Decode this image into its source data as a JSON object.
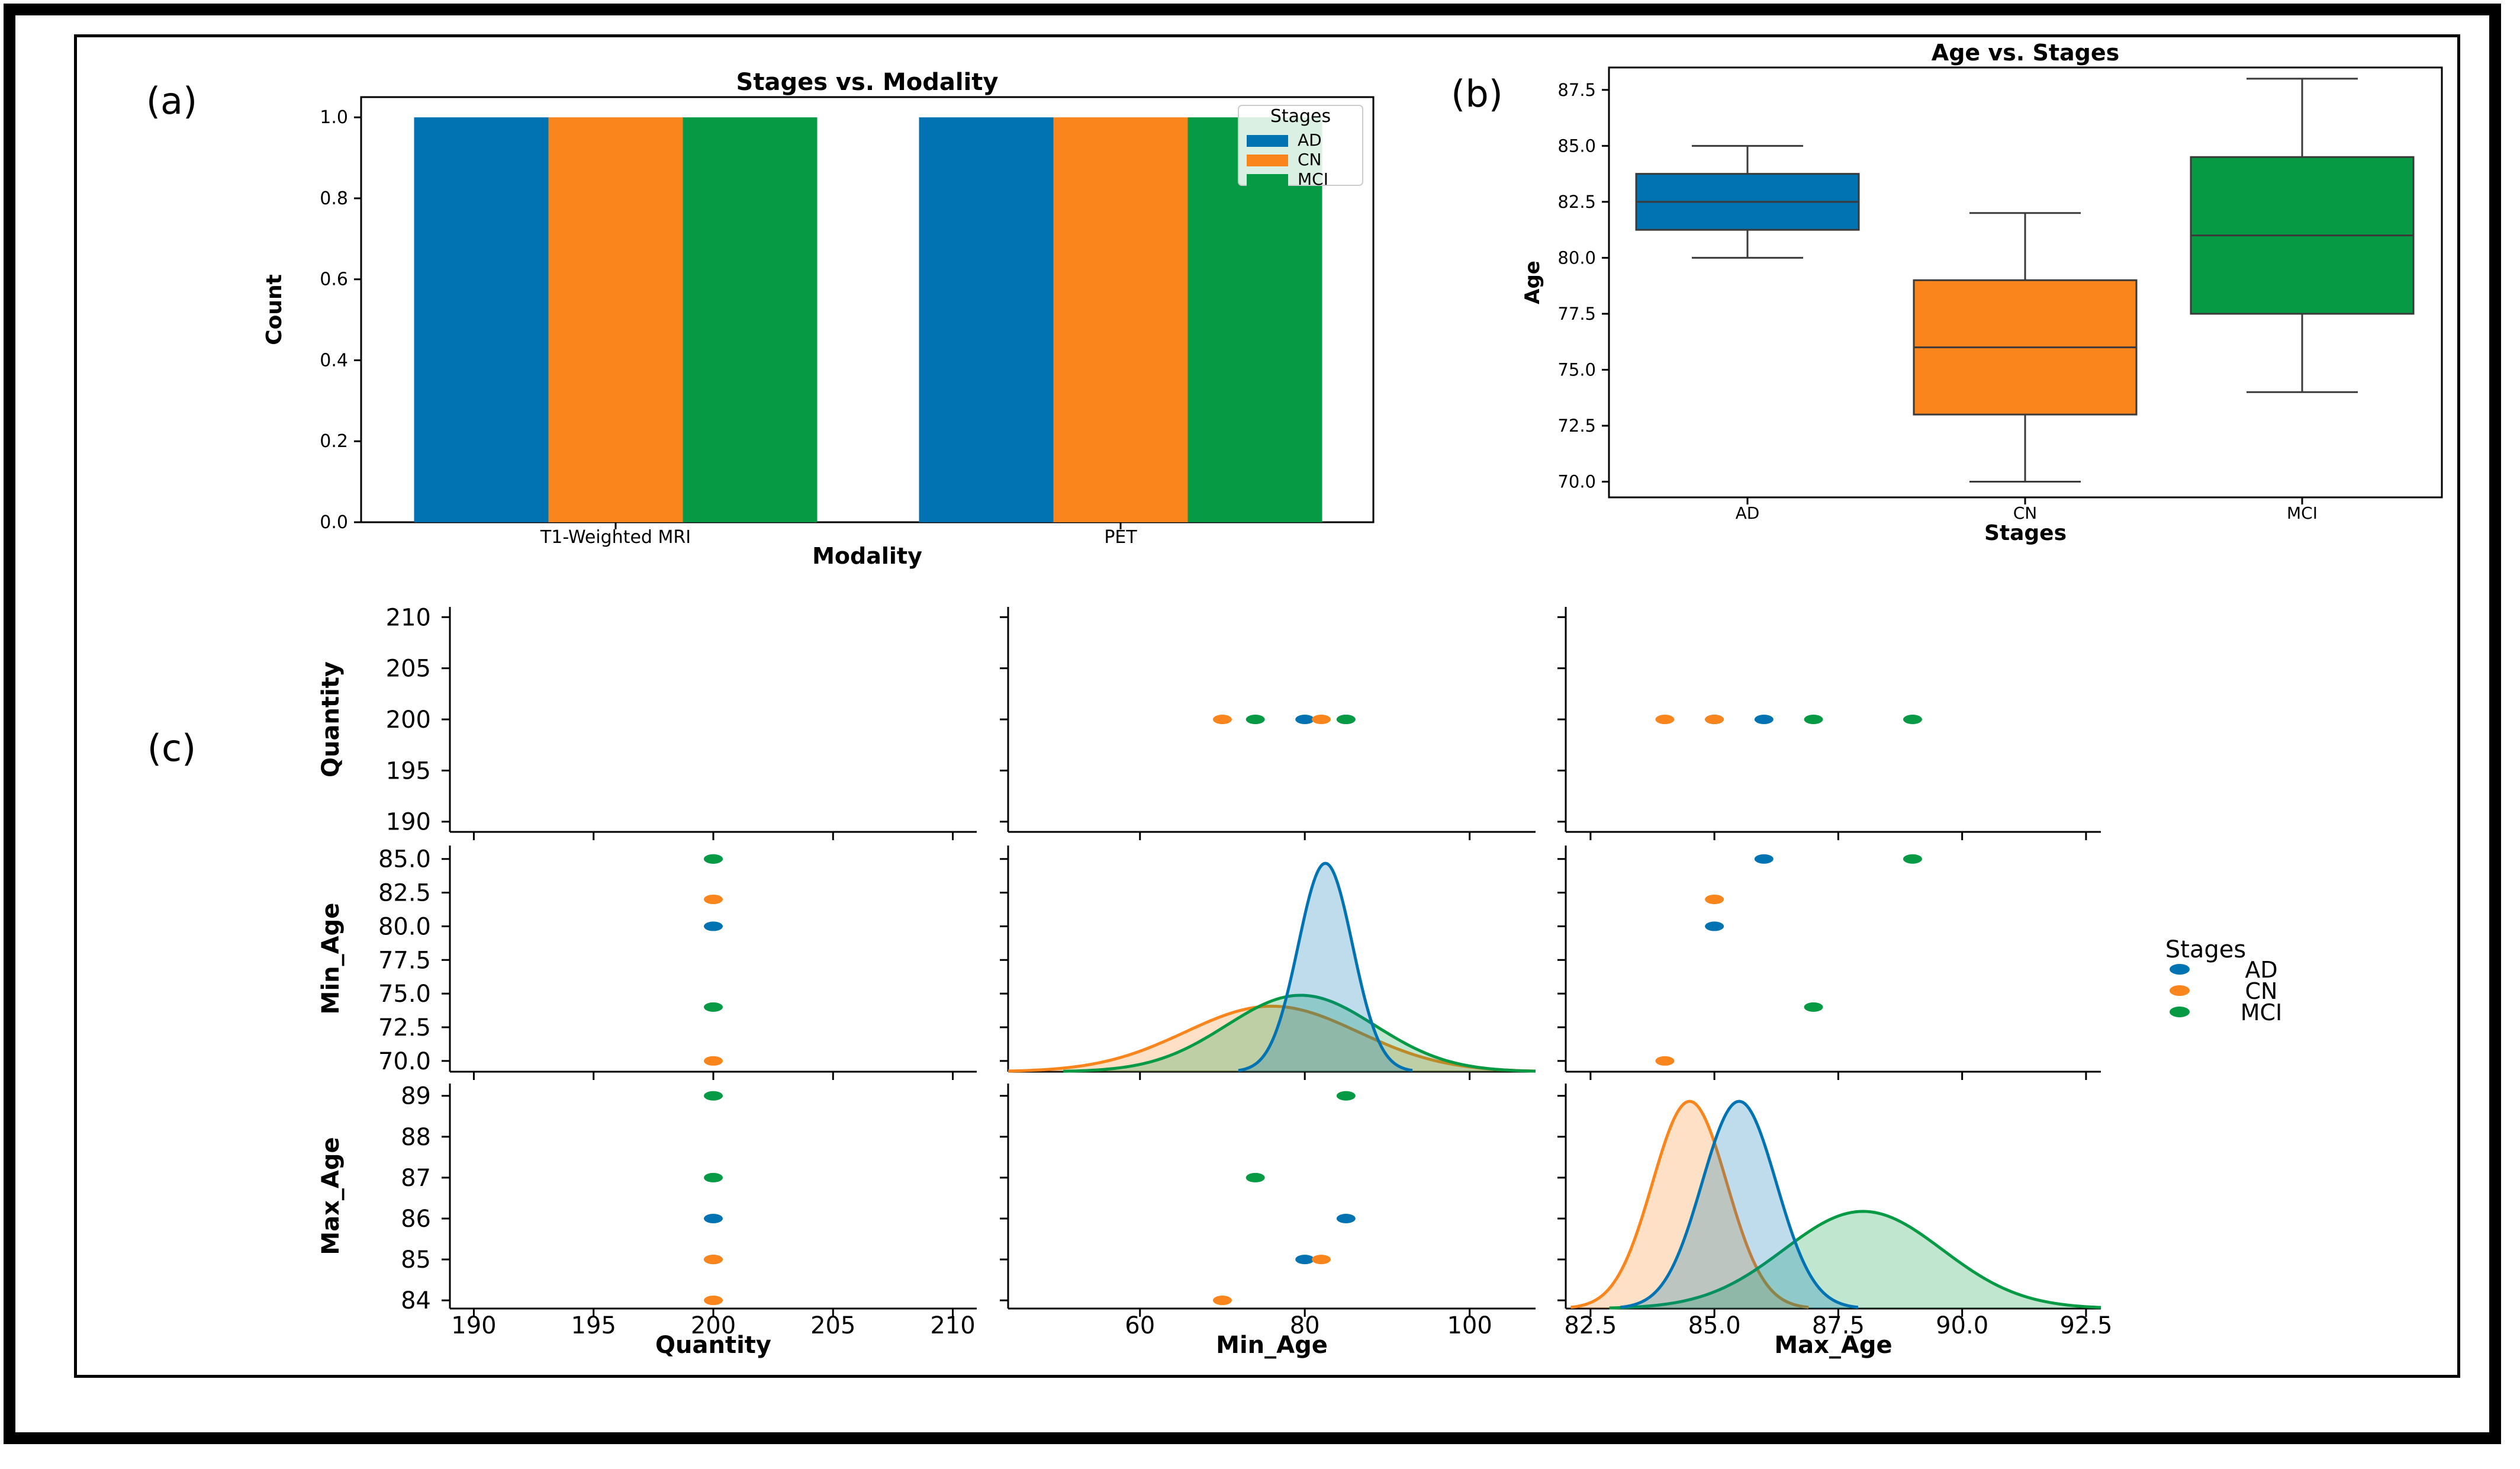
{
  "colors": {
    "AD": "#0173b2",
    "CN": "#f9851c",
    "MCI": "#079a44"
  },
  "panel_labels": {
    "a": "(a)",
    "b": "(b)",
    "c": "(c)"
  },
  "chart_data": [
    {
      "id": "a",
      "type": "bar",
      "title": "Stages vs. Modality",
      "xlabel": "Modality",
      "ylabel": "Count",
      "categories": [
        "T1-Weighted MRI",
        "PET"
      ],
      "series": [
        {
          "name": "AD",
          "values": [
            1.0,
            1.0
          ]
        },
        {
          "name": "CN",
          "values": [
            1.0,
            1.0
          ]
        },
        {
          "name": "MCI",
          "values": [
            1.0,
            1.0
          ]
        }
      ],
      "ylim": [
        0,
        1.05
      ],
      "yticks": [
        "0.0",
        "0.2",
        "0.4",
        "0.6",
        "0.8",
        "1.0"
      ],
      "legend": {
        "title": "Stages",
        "placement": "top-right"
      },
      "grid": false
    },
    {
      "id": "b",
      "type": "box",
      "title": "Age vs. Stages",
      "xlabel": "Stages",
      "ylabel": "Age",
      "categories": [
        "AD",
        "CN",
        "MCI"
      ],
      "boxes": [
        {
          "name": "AD",
          "whisker_low": 80.0,
          "q1": 81.25,
          "median": 82.5,
          "q3": 83.75,
          "whisker_high": 85.0
        },
        {
          "name": "CN",
          "whisker_low": 70.0,
          "q1": 73.0,
          "median": 76.0,
          "q3": 79.0,
          "whisker_high": 82.0
        },
        {
          "name": "MCI",
          "whisker_low": 74.0,
          "q1": 77.5,
          "median": 81.0,
          "q3": 84.5,
          "whisker_high": 88.0
        }
      ],
      "ylim": [
        69.3,
        88.5
      ],
      "yticks": [
        "70.0",
        "72.5",
        "75.0",
        "77.5",
        "80.0",
        "82.5",
        "85.0",
        "87.5"
      ],
      "grid": false
    },
    {
      "id": "c",
      "type": "scatter",
      "subtype": "pairplot",
      "variables": [
        "Quantity",
        "Min_Age",
        "Max_Age"
      ],
      "hue": "Stages",
      "legend": {
        "title": "Stages",
        "entries": [
          "AD",
          "CN",
          "MCI"
        ],
        "placement": "right"
      },
      "points": [
        {
          "stage": "AD",
          "Quantity": 200,
          "Min_Age": 80,
          "Max_Age": 85
        },
        {
          "stage": "AD",
          "Quantity": 200,
          "Min_Age": 85,
          "Max_Age": 86
        },
        {
          "stage": "CN",
          "Quantity": 200,
          "Min_Age": 70,
          "Max_Age": 84
        },
        {
          "stage": "CN",
          "Quantity": 200,
          "Min_Age": 82,
          "Max_Age": 85
        },
        {
          "stage": "MCI",
          "Quantity": 200,
          "Min_Age": 74,
          "Max_Age": 87
        },
        {
          "stage": "MCI",
          "Quantity": 200,
          "Min_Age": 85,
          "Max_Age": 89
        }
      ],
      "kde": {
        "Min_Age": [
          {
            "stage": "AD",
            "mean": 82.5,
            "sd": 3.3
          },
          {
            "stage": "CN",
            "mean": 76.0,
            "sd": 10.5
          },
          {
            "stage": "MCI",
            "mean": 79.5,
            "sd": 9.0
          }
        ],
        "Max_Age": [
          {
            "stage": "AD",
            "mean": 85.5,
            "sd": 0.75
          },
          {
            "stage": "CN",
            "mean": 84.5,
            "sd": 0.75
          },
          {
            "stage": "MCI",
            "mean": 88.0,
            "sd": 1.6
          }
        ]
      },
      "axes": {
        "Quantity": {
          "lim": [
            189,
            211
          ],
          "ticks": [
            "190",
            "195",
            "200",
            "205",
            "210"
          ],
          "label": "Quantity"
        },
        "Min_Age": {
          "lim": [
            69.2,
            86.0
          ],
          "ticks": [
            "70.0",
            "72.5",
            "75.0",
            "77.5",
            "80.0",
            "82.5",
            "85.0"
          ],
          "label": "Min_Age"
        },
        "Min_Age_x": {
          "lim": [
            44,
            108
          ],
          "ticks": [
            "60",
            "80",
            "100"
          ]
        },
        "Max_Age": {
          "lim": [
            83.8,
            89.3
          ],
          "ticks": [
            "84",
            "85",
            "86",
            "87",
            "88",
            "89"
          ],
          "label": "Max_Age"
        },
        "Max_Age_x": {
          "lim": [
            82.0,
            92.8
          ],
          "ticks": [
            "82.5",
            "85.0",
            "87.5",
            "90.0",
            "92.5"
          ]
        }
      }
    }
  ]
}
